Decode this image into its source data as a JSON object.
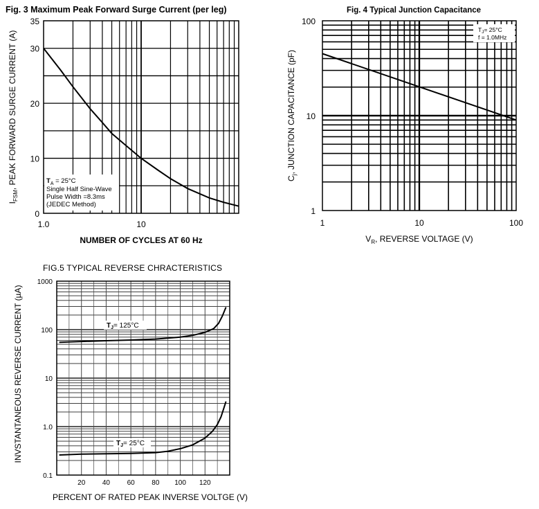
{
  "chart_data": [
    {
      "type": "line",
      "title": "Fig. 3  Maximum Peak Forward Surge Current (per leg)",
      "xlabel": "NUMBER OF CYCLES AT 60 Hz",
      "ylabel": "I_FSM, PEAK FORWARD SURGE CURRENT (A)",
      "ylabel_main": "I",
      "ylabel_sub": "FSM",
      "ylabel_rest": ", PEAK FORWARD SURGE CURRENT (A)",
      "xscale": "log",
      "xlim": [
        1,
        100
      ],
      "ylim": [
        0,
        35
      ],
      "grid": true,
      "x_ticks": [
        1,
        10
      ],
      "x_tick_labels": [
        "1.0",
        "10"
      ],
      "y_ticks": [
        0,
        10,
        20,
        30,
        35
      ],
      "y_tick_labels": [
        "0",
        "10",
        "20",
        "30",
        "35"
      ],
      "series": [
        {
          "name": "IFSM",
          "x": [
            1,
            1.5,
            2,
            3,
            4,
            5,
            7,
            10,
            15,
            20,
            30,
            50,
            70,
            100
          ],
          "values": [
            30,
            26,
            23,
            19,
            16.5,
            14.5,
            12.3,
            10,
            7.8,
            6.3,
            4.5,
            2.8,
            2.0,
            1.3
          ]
        }
      ],
      "annotation": {
        "ta_main": "T",
        "ta_sub": "A",
        "ta_rest": " = 25°C",
        "line1": "Single Half Sine-Wave",
        "line2": "Pulse Width =8.3ms",
        "line3": "(JEDEC Method)"
      }
    },
    {
      "type": "line",
      "title": "Fig. 4  Typical Junction Capacitance",
      "xlabel": "V_R, REVERSE VOLTAGE (V)",
      "xlabel_main": "V",
      "xlabel_sub": "R",
      "xlabel_rest": ", REVERSE VOLTAGE (V)",
      "ylabel": "C_j, JUNCTION CAPACITANCE (pF)",
      "ylabel_main": "C",
      "ylabel_sub": "j",
      "ylabel_rest": ", JUNCTION CAPACITANCE (pF)",
      "xscale": "log",
      "yscale": "log",
      "xlim": [
        1,
        100
      ],
      "ylim": [
        1,
        100
      ],
      "grid": true,
      "x_ticks": [
        1,
        10,
        100
      ],
      "x_tick_labels": [
        "1",
        "10",
        "100"
      ],
      "y_ticks": [
        1,
        10,
        100
      ],
      "y_tick_labels": [
        "1",
        "10",
        "100"
      ],
      "series": [
        {
          "name": "Cj",
          "x": [
            1,
            100
          ],
          "values": [
            45,
            9
          ]
        }
      ],
      "annotation": {
        "tj_main": "T",
        "tj_sub": "J",
        "tj_rest": "= 25°C",
        "freq": "f = 1.0MHz"
      }
    },
    {
      "type": "line",
      "title": "FIG.5 TYPICAL REVERSE CHRACTERISTICS",
      "xlabel": "PERCENT OF RATED PEAK INVERSE VOLTGE  (V)",
      "ylabel": "INVSTANTANEOUS REVERSE CURRENT (µA)",
      "yscale": "log",
      "xlim": [
        0,
        140
      ],
      "ylim": [
        0.1,
        1000
      ],
      "grid": true,
      "x_ticks": [
        20,
        40,
        60,
        80,
        100,
        120
      ],
      "x_tick_labels": [
        "20",
        "40",
        "60",
        "80",
        "100",
        "120"
      ],
      "y_ticks": [
        0.1,
        1,
        10,
        100,
        1000
      ],
      "y_tick_labels": [
        "0.1",
        "1.0",
        "10",
        "100",
        "1000"
      ],
      "series": [
        {
          "name": "TJ = 125°C",
          "label_main": "T",
          "label_sub": "J",
          "label_rest": "= 125°C",
          "x": [
            2,
            20,
            40,
            60,
            80,
            100,
            110,
            120,
            127,
            131,
            134,
            137
          ],
          "values": [
            55,
            57,
            59,
            61,
            64,
            70,
            76,
            88,
            105,
            135,
            190,
            290
          ]
        },
        {
          "name": "TJ = 25°C",
          "label_main": "T",
          "label_sub": "J",
          "label_rest": "= 25°C",
          "x": [
            2,
            20,
            40,
            60,
            80,
            90,
            100,
            110,
            120,
            126,
            130,
            133,
            135,
            137
          ],
          "values": [
            0.26,
            0.27,
            0.275,
            0.28,
            0.29,
            0.31,
            0.35,
            0.42,
            0.58,
            0.8,
            1.1,
            1.6,
            2.3,
            3.3
          ]
        }
      ]
    }
  ]
}
